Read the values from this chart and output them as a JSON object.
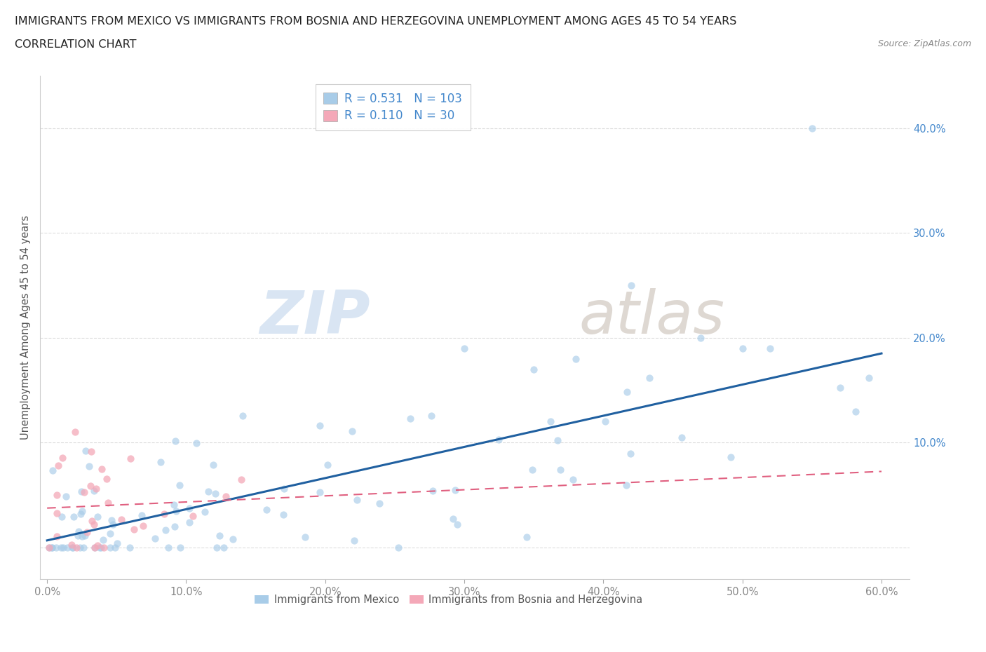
{
  "title_line1": "IMMIGRANTS FROM MEXICO VS IMMIGRANTS FROM BOSNIA AND HERZEGOVINA UNEMPLOYMENT AMONG AGES 45 TO 54 YEARS",
  "title_line2": "CORRELATION CHART",
  "source_text": "Source: ZipAtlas.com",
  "ylabel": "Unemployment Among Ages 45 to 54 years",
  "mexico_color": "#a8cce8",
  "bosnia_color": "#f4a8b8",
  "mexico_line_color": "#2060a0",
  "bosnia_line_color": "#e06080",
  "mexico_R": 0.531,
  "mexico_N": 103,
  "bosnia_R": 0.11,
  "bosnia_N": 30,
  "mexico_label": "Immigrants from Mexico",
  "bosnia_label": "Immigrants from Bosnia and Herzegovina",
  "watermark_zip": "ZIP",
  "watermark_atlas": "atlas",
  "xlim": [
    -0.005,
    0.62
  ],
  "ylim": [
    -0.03,
    0.45
  ],
  "xticks": [
    0.0,
    0.1,
    0.2,
    0.3,
    0.4,
    0.5,
    0.6
  ],
  "yticks": [
    0.0,
    0.1,
    0.2,
    0.3,
    0.4
  ],
  "xticklabels": [
    "0.0%",
    "10.0%",
    "20.0%",
    "30.0%",
    "40.0%",
    "50.0%",
    "60.0%"
  ],
  "yticklabels_right": [
    "",
    "10.0%",
    "20.0%",
    "30.0%",
    "40.0%"
  ],
  "background_color": "#ffffff",
  "grid_color": "#dddddd",
  "tick_label_color": "#888888",
  "right_tick_color": "#4488cc",
  "title_color": "#222222",
  "source_color": "#888888"
}
